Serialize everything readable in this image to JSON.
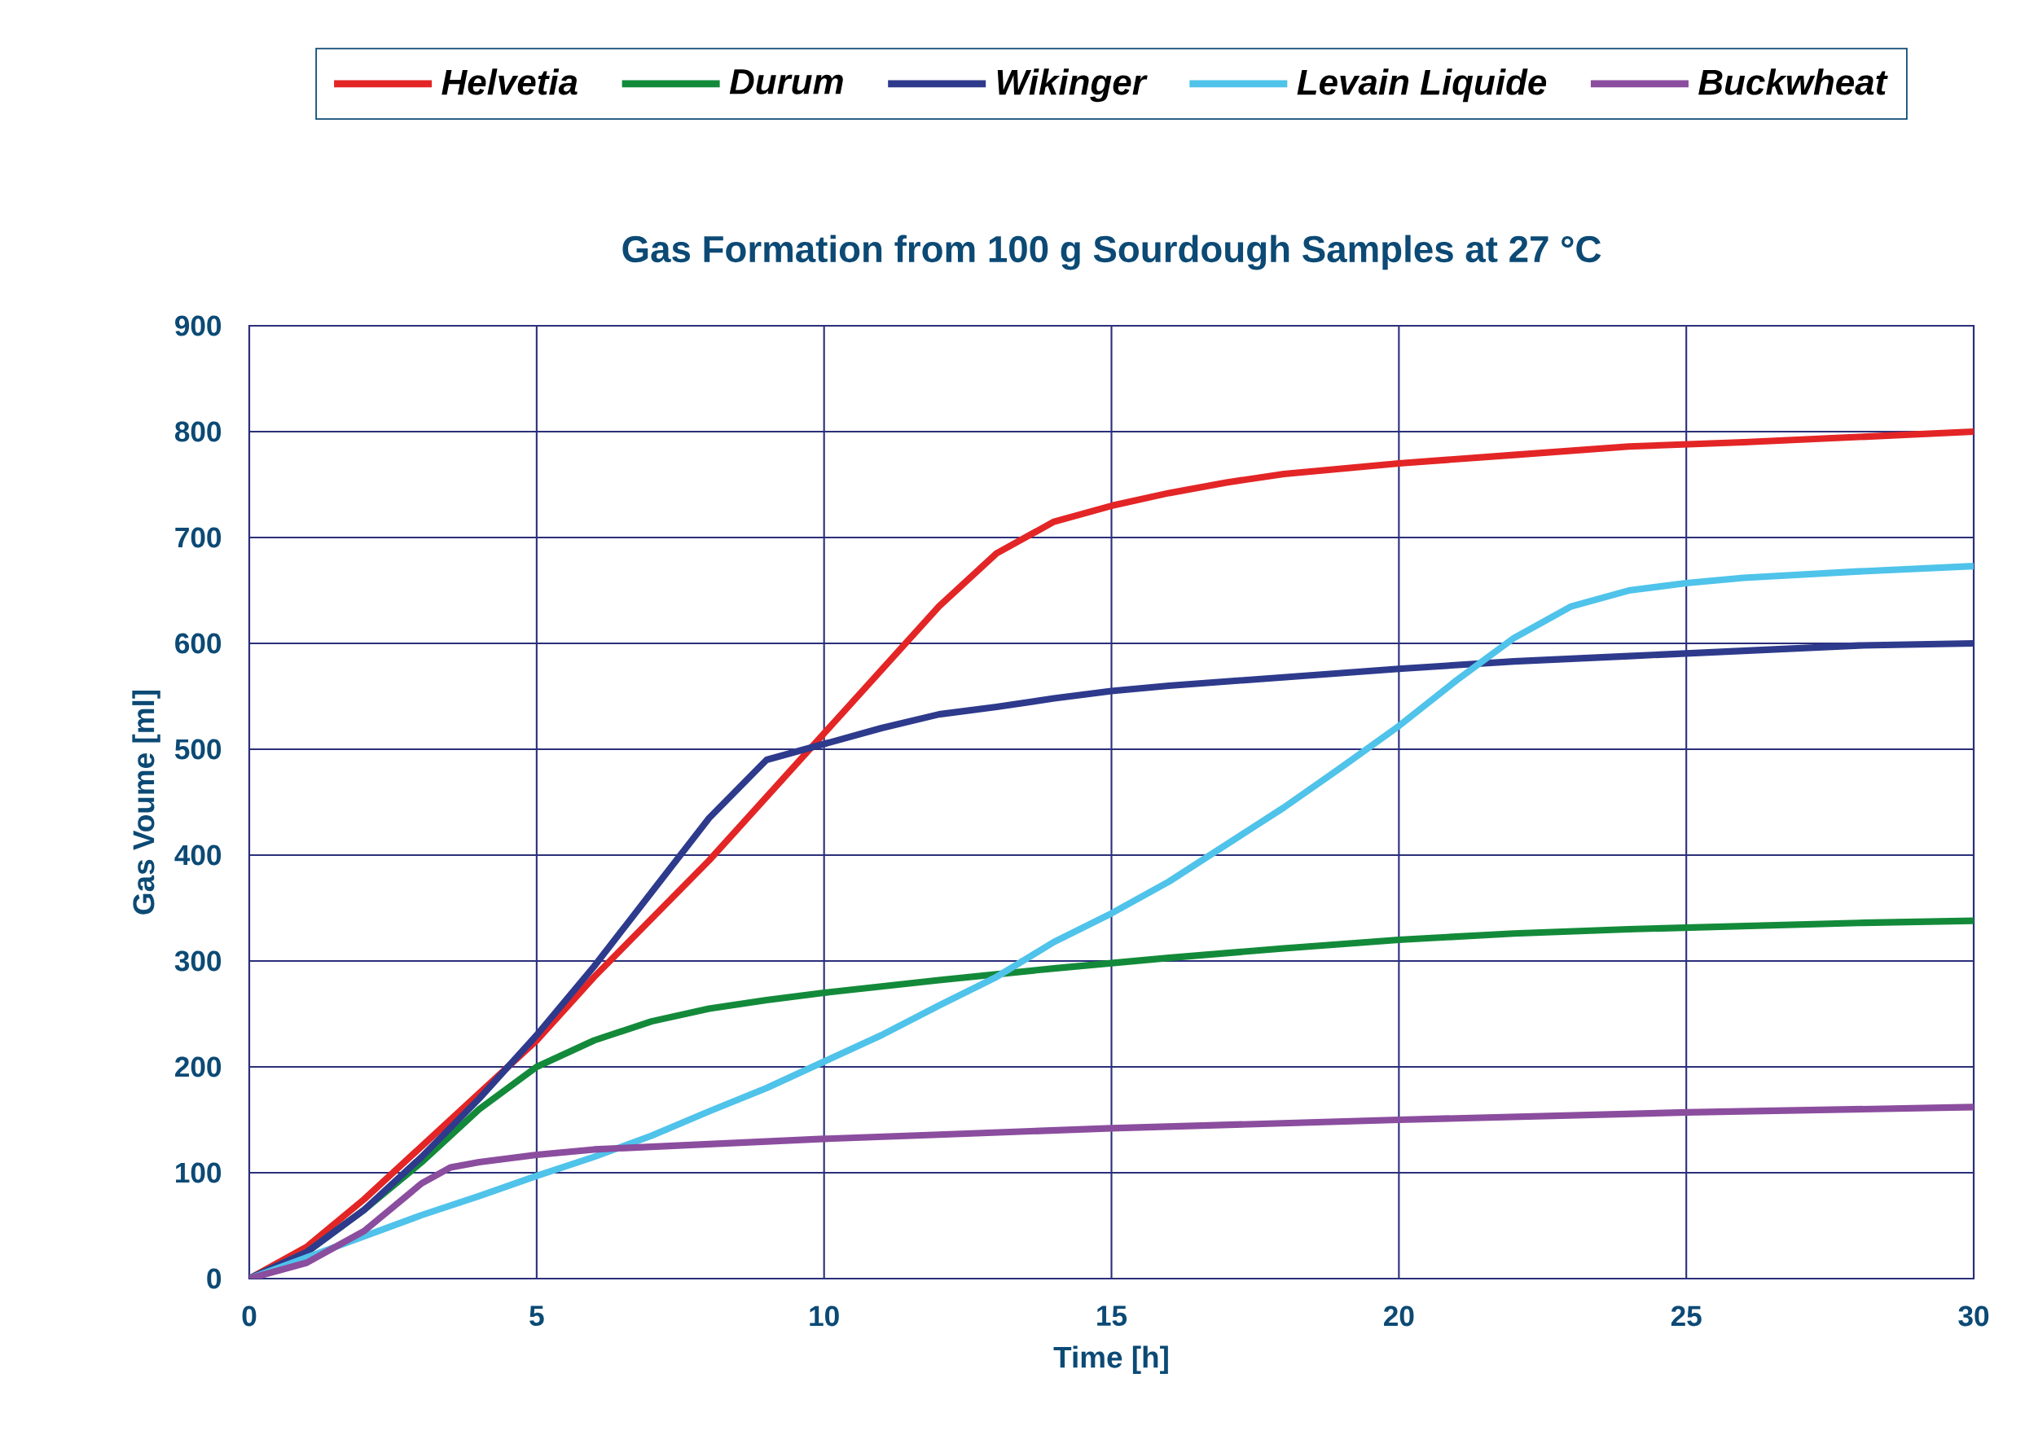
{
  "chart_data": {
    "type": "line",
    "title": "Gas Formation from 100 g Sourdough Samples at 27 °C",
    "xlabel": "Time [h]",
    "ylabel": "Gas Voume [ml]",
    "xlim": [
      0,
      30
    ],
    "ylim": [
      0,
      900
    ],
    "xticks": [
      0,
      5,
      10,
      15,
      20,
      25,
      30
    ],
    "yticks": [
      0,
      100,
      200,
      300,
      400,
      500,
      600,
      700,
      800,
      900
    ],
    "grid": true,
    "legend": "top",
    "marker": "none",
    "line_style": "solid",
    "series": [
      {
        "name": "Helvetia",
        "color": "#e32526",
        "x": [
          0,
          1,
          2,
          3,
          4,
          5,
          6,
          7,
          8,
          9,
          10,
          11,
          12,
          13,
          14,
          15,
          16,
          17,
          18,
          19,
          20,
          22,
          24,
          26,
          28,
          30
        ],
        "values": [
          0,
          30,
          75,
          125,
          175,
          225,
          285,
          340,
          395,
          455,
          515,
          575,
          635,
          685,
          715,
          730,
          742,
          752,
          760,
          765,
          770,
          778,
          786,
          790,
          795,
          800
        ]
      },
      {
        "name": "Durum",
        "color": "#138a3a",
        "x": [
          0,
          1,
          2,
          3,
          4,
          5,
          6,
          7,
          8,
          9,
          10,
          12,
          14,
          16,
          18,
          20,
          22,
          24,
          26,
          28,
          30
        ],
        "values": [
          0,
          25,
          65,
          110,
          160,
          200,
          225,
          243,
          255,
          263,
          270,
          282,
          293,
          303,
          312,
          320,
          326,
          330,
          333,
          336,
          338
        ]
      },
      {
        "name": "Wikinger",
        "color": "#2e3a8c",
        "x": [
          0,
          1,
          2,
          3,
          4,
          5,
          6,
          7,
          8,
          9,
          10,
          11,
          12,
          13,
          14,
          15,
          16,
          18,
          20,
          22,
          24,
          26,
          28,
          30
        ],
        "values": [
          0,
          25,
          65,
          115,
          170,
          230,
          295,
          365,
          435,
          490,
          505,
          520,
          533,
          540,
          548,
          555,
          560,
          568,
          576,
          583,
          588,
          593,
          598,
          600
        ]
      },
      {
        "name": "Levain Liquide",
        "color": "#4fc3ea",
        "x": [
          0,
          1,
          2,
          3,
          4,
          5,
          6,
          7,
          8,
          9,
          10,
          11,
          12,
          13,
          14,
          15,
          16,
          17,
          18,
          19,
          20,
          21,
          22,
          23,
          24,
          25,
          26,
          28,
          30
        ],
        "values": [
          0,
          20,
          40,
          60,
          78,
          97,
          115,
          135,
          158,
          180,
          205,
          230,
          258,
          285,
          318,
          345,
          375,
          410,
          445,
          483,
          522,
          565,
          605,
          635,
          650,
          657,
          662,
          668,
          673
        ]
      },
      {
        "name": "Buckwheat",
        "color": "#8b4d9e",
        "x": [
          0,
          1,
          2,
          3,
          3.5,
          4,
          5,
          6,
          8,
          10,
          12,
          15,
          20,
          25,
          30
        ],
        "values": [
          0,
          15,
          45,
          90,
          105,
          110,
          117,
          122,
          127,
          132,
          136,
          142,
          150,
          157,
          162
        ]
      }
    ]
  }
}
